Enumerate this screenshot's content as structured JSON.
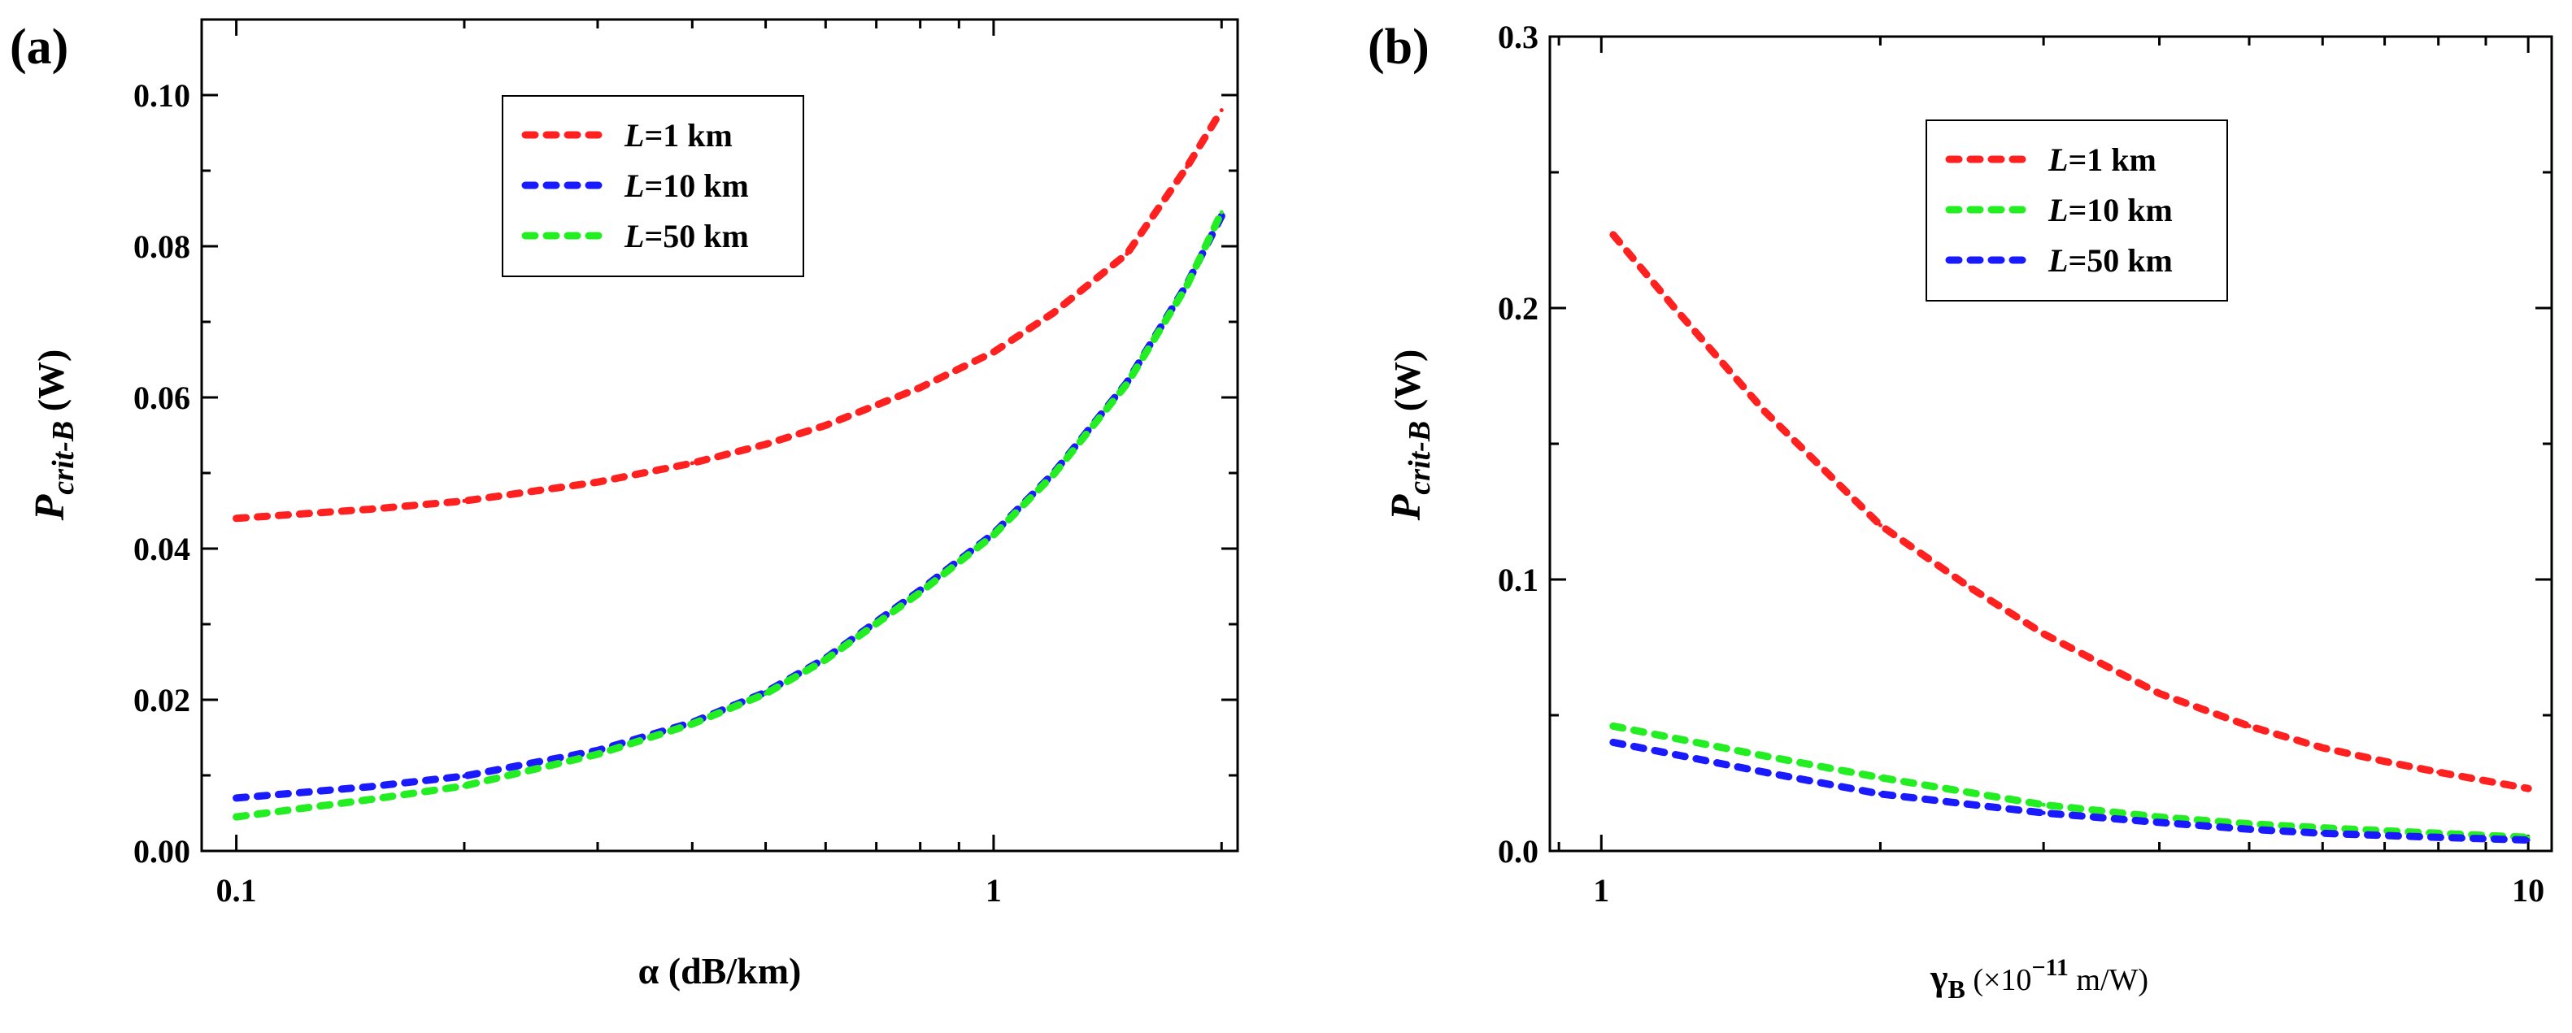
{
  "colors": {
    "red": "#ff2020",
    "blue": "#1a1aff",
    "green": "#22ee22"
  },
  "chart_data": [
    {
      "type": "line",
      "panel_label": "(a)",
      "xscale": "log",
      "xlim": [
        0.09,
        2.1
      ],
      "ylim": [
        0,
        0.11
      ],
      "xlabel": "α (dB/km)",
      "ylabel": {
        "main": "P",
        "sub": "crit-B",
        "unit": " (W)"
      },
      "xticks": [
        {
          "v": 0.1,
          "label": "0.1"
        },
        {
          "v": 1,
          "label": "1"
        }
      ],
      "yticks": [
        {
          "v": 0,
          "label": "0.00"
        },
        {
          "v": 0.02,
          "label": "0.02"
        },
        {
          "v": 0.04,
          "label": "0.04"
        },
        {
          "v": 0.06,
          "label": "0.06"
        },
        {
          "v": 0.08,
          "label": "0.08"
        },
        {
          "v": 0.1,
          "label": "0.10"
        }
      ],
      "legend": {
        "position": "top-center"
      },
      "series": [
        {
          "name_var": "L",
          "name_rest": "=1 km",
          "color": "red",
          "x": [
            0.1,
            0.15,
            0.2,
            0.3,
            0.4,
            0.5,
            0.6,
            0.8,
            1.0,
            1.2,
            1.5,
            1.8,
            2.0
          ],
          "y": [
            0.044,
            0.0452,
            0.0463,
            0.0488,
            0.0513,
            0.0538,
            0.0563,
            0.0613,
            0.066,
            0.0712,
            0.079,
            0.0905,
            0.098
          ]
        },
        {
          "name_var": "L",
          "name_rest": "=10 km",
          "color": "blue",
          "x": [
            0.1,
            0.15,
            0.2,
            0.3,
            0.4,
            0.5,
            0.6,
            0.8,
            1.0,
            1.2,
            1.5,
            1.8,
            2.0
          ],
          "y": [
            0.007,
            0.0085,
            0.0099,
            0.0133,
            0.017,
            0.021,
            0.0255,
            0.0345,
            0.042,
            0.05,
            0.062,
            0.075,
            0.084
          ]
        },
        {
          "name_var": "L",
          "name_rest": "=50 km",
          "color": "green",
          "x": [
            0.1,
            0.15,
            0.2,
            0.3,
            0.4,
            0.5,
            0.6,
            0.8,
            1.0,
            1.2,
            1.5,
            1.8,
            2.0
          ],
          "y": [
            0.0045,
            0.0068,
            0.0086,
            0.0128,
            0.0168,
            0.0208,
            0.0253,
            0.0342,
            0.0418,
            0.0498,
            0.0618,
            0.0748,
            0.0845
          ]
        }
      ]
    },
    {
      "type": "line",
      "panel_label": "(b)",
      "xscale": "log",
      "xlim": [
        0.88,
        10.6
      ],
      "ylim": [
        0,
        0.3
      ],
      "xlabel": {
        "main": "γ",
        "sub": "B",
        "rest1": " (×10",
        "sup": "−11",
        "rest2": " m/W)"
      },
      "ylabel": {
        "main": "P",
        "sub": "crit-B",
        "unit": " (W)"
      },
      "xticks": [
        {
          "v": 1,
          "label": "1"
        },
        {
          "v": 10,
          "label": "10"
        }
      ],
      "yticks": [
        {
          "v": 0,
          "label": "0.0"
        },
        {
          "v": 0.1,
          "label": "0.1"
        },
        {
          "v": 0.2,
          "label": "0.2"
        },
        {
          "v": 0.3,
          "label": "0.3"
        }
      ],
      "legend": {
        "position": "top-center"
      },
      "series": [
        {
          "name_var": "L",
          "name_rest": "=1 km",
          "color": "red",
          "x": [
            1.03,
            1.2,
            1.5,
            2.0,
            2.5,
            3.0,
            4.0,
            5.0,
            6.0,
            7.0,
            8.0,
            10.0
          ],
          "y": [
            0.227,
            0.2,
            0.162,
            0.12,
            0.097,
            0.08,
            0.058,
            0.046,
            0.038,
            0.033,
            0.029,
            0.023
          ]
        },
        {
          "name_var": "L",
          "name_rest": "=10 km",
          "color": "green",
          "x": [
            1.03,
            1.5,
            2.0,
            3.0,
            4.0,
            5.0,
            6.0,
            8.0,
            10.0
          ],
          "y": [
            0.046,
            0.035,
            0.027,
            0.017,
            0.0125,
            0.01,
            0.0085,
            0.0065,
            0.005
          ]
        },
        {
          "name_var": "L",
          "name_rest": "=50 km",
          "color": "blue",
          "x": [
            1.03,
            1.5,
            2.0,
            3.0,
            4.0,
            5.0,
            6.0,
            8.0,
            10.0
          ],
          "y": [
            0.04,
            0.029,
            0.021,
            0.014,
            0.0105,
            0.008,
            0.0065,
            0.005,
            0.004
          ]
        }
      ]
    }
  ]
}
